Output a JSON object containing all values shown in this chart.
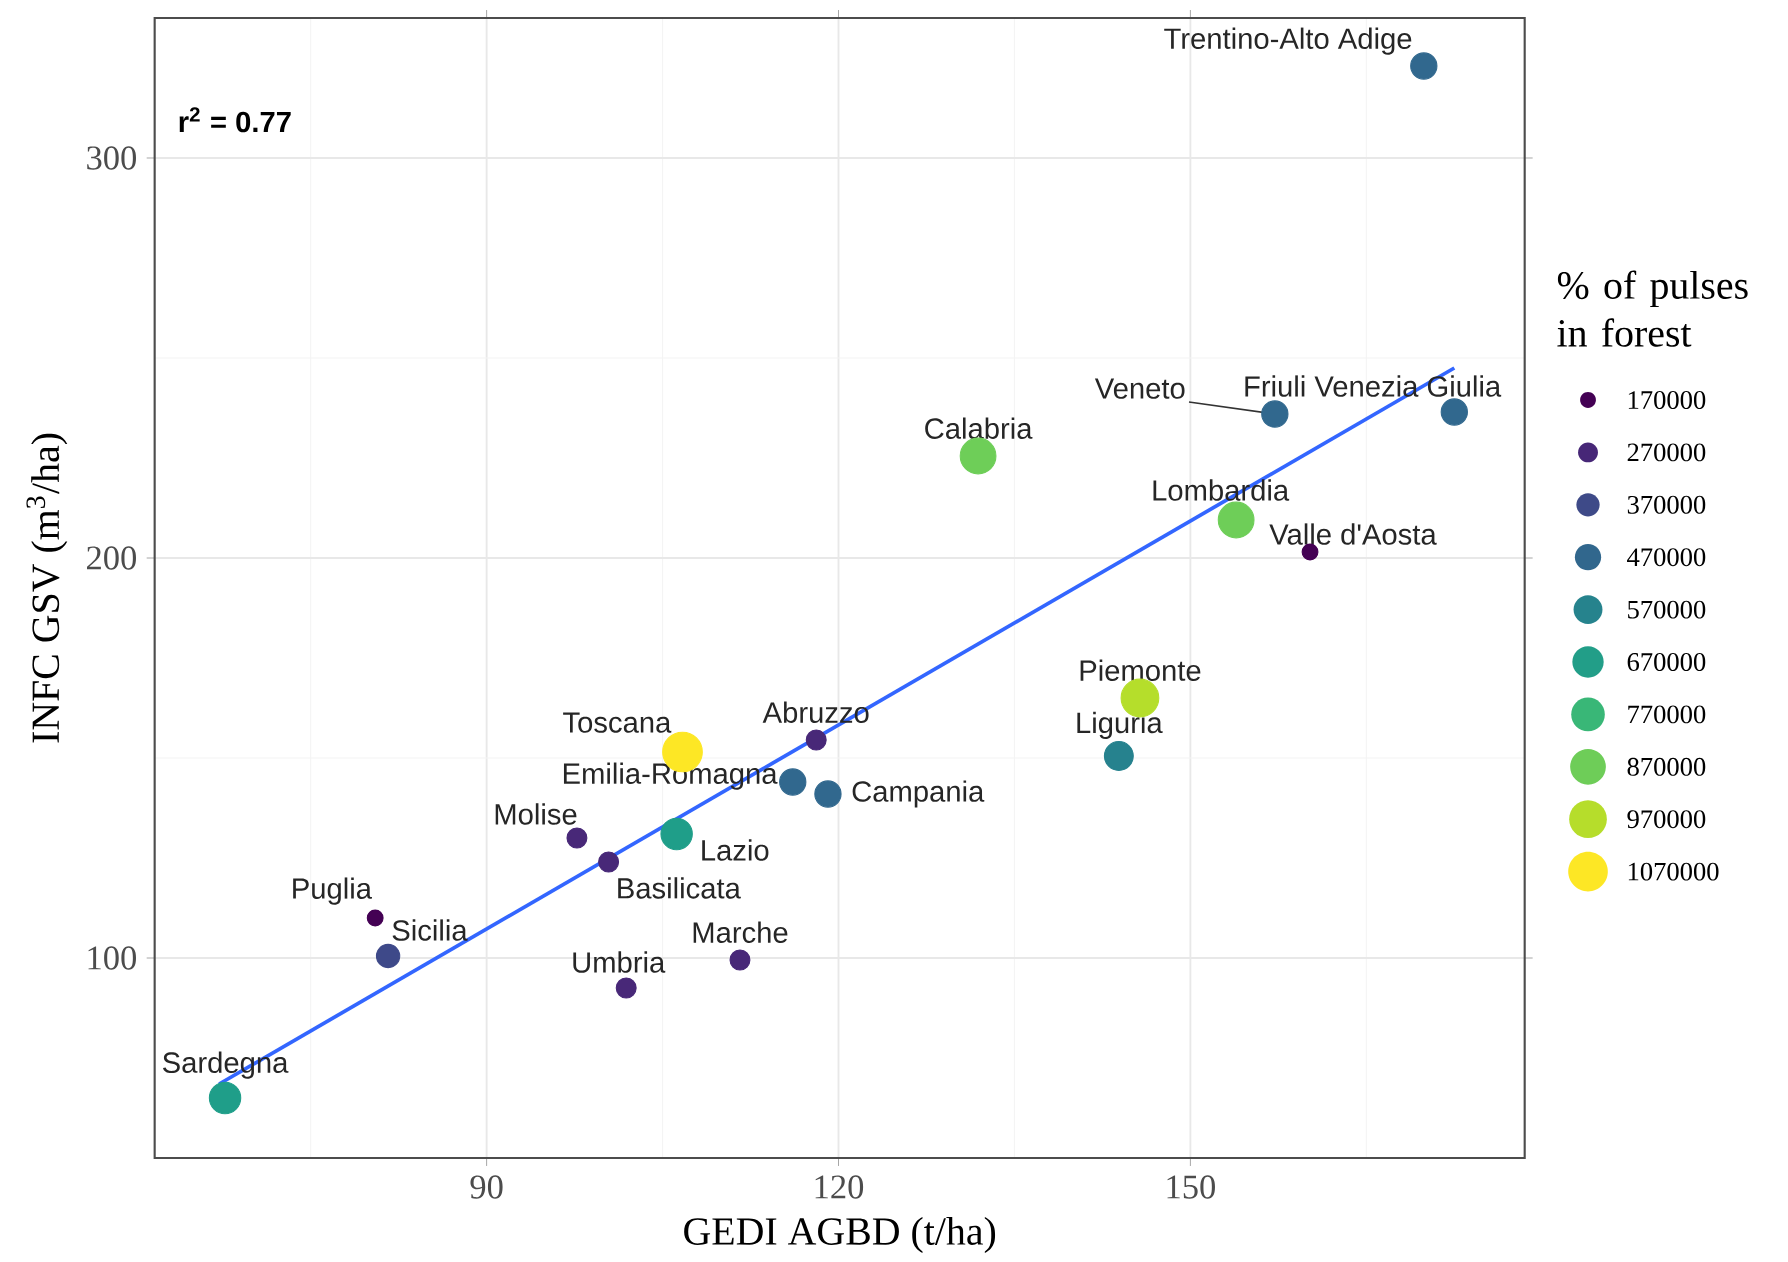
{
  "chart_data": {
    "type": "bubble",
    "xlabel": "GEDI AGBD (t/ha)",
    "ylabel": "INFC GSV (m$^{3}$/ha)",
    "legend_title": "% of pulses in forest",
    "xlim": [
      61.7,
      178.5
    ],
    "ylim": [
      50,
      335
    ],
    "xticks": [
      90,
      120,
      150
    ],
    "yticks": [
      100,
      200,
      300
    ],
    "grid": true,
    "size_legend": [
      170000,
      270000,
      370000,
      470000,
      570000,
      670000,
      770000,
      870000,
      970000,
      1070000
    ],
    "series": [
      {
        "colors": [
          "#31688e",
          "#31688e",
          "#31688e",
          "#6ece58",
          "#6ece58",
          "#440154",
          "#b5de2b",
          "#26828e",
          "#fde725",
          "#482878",
          "#31688e",
          "#31688e",
          "#1f9e89",
          "#482878",
          "#482878",
          "#440154",
          "#3e4989",
          "#482878",
          "#482878",
          "#1f9e89"
        ],
        "x": [
          169.9,
          172.5,
          157.2,
          131.9,
          153.9,
          160.2,
          145.7,
          143.9,
          106.7,
          118.1,
          116.1,
          119.1,
          106.2,
          97.7,
          100.4,
          80.5,
          81.6,
          101.9,
          111.6,
          67.7
        ],
        "values": [
          323,
          236.5,
          236,
          225.5,
          209.5,
          201.5,
          165,
          150.5,
          151.5,
          154.5,
          144,
          141,
          131,
          130,
          124,
          110,
          100.5,
          92.5,
          99.5,
          65
        ],
        "sizes": [
          470000,
          470000,
          470000,
          870000,
          870000,
          170000,
          970000,
          570000,
          1070000,
          270000,
          470000,
          470000,
          670000,
          270000,
          270000,
          170000,
          370000,
          270000,
          270000,
          670000
        ]
      },
      {
        "type": "line",
        "color": "#3366ff",
        "x": [
          67.2,
          172.5
        ],
        "values": [
          68.5,
          247.5
        ]
      }
    ],
    "annotations": [
      "r$^{2}$ = 0.77",
      {
        "text": "Trentino-Alto Adige",
        "x": 169.9,
        "y": 323
      },
      {
        "text": "Friuli Venezia Giulia",
        "x": 172.5,
        "y": 236.5
      },
      {
        "text": "Veneto",
        "x": 157.2,
        "y": 236
      },
      {
        "text": "Calabria",
        "x": 131.9,
        "y": 225.5
      },
      {
        "text": "Lombardia",
        "x": 153.9,
        "y": 209.5
      },
      {
        "text": "Valle d'Aosta",
        "x": 160.2,
        "y": 201.5
      },
      {
        "text": "Piemonte",
        "x": 145.7,
        "y": 165
      },
      {
        "text": "Liguria",
        "x": 143.9,
        "y": 150.5
      },
      {
        "text": "Toscana",
        "x": 106.7,
        "y": 151.5
      },
      {
        "text": "Abruzzo",
        "x": 118.1,
        "y": 154.5
      },
      {
        "text": "Emilia-Romagna",
        "x": 116.1,
        "y": 144
      },
      {
        "text": "Campania",
        "x": 119.1,
        "y": 141
      },
      {
        "text": "Lazio",
        "x": 106.2,
        "y": 131
      },
      {
        "text": "Molise",
        "x": 97.7,
        "y": 130
      },
      {
        "text": "Basilicata",
        "x": 100.4,
        "y": 124
      },
      {
        "text": "Puglia",
        "x": 80.5,
        "y": 110
      },
      {
        "text": "Sicilia",
        "x": 81.6,
        "y": 100.5
      },
      {
        "text": "Umbria",
        "x": 101.9,
        "y": 92.5
      },
      {
        "text": "Marche",
        "x": 111.6,
        "y": 99.5
      },
      {
        "text": "Sardegna",
        "x": 67.7,
        "y": 65
      }
    ]
  }
}
